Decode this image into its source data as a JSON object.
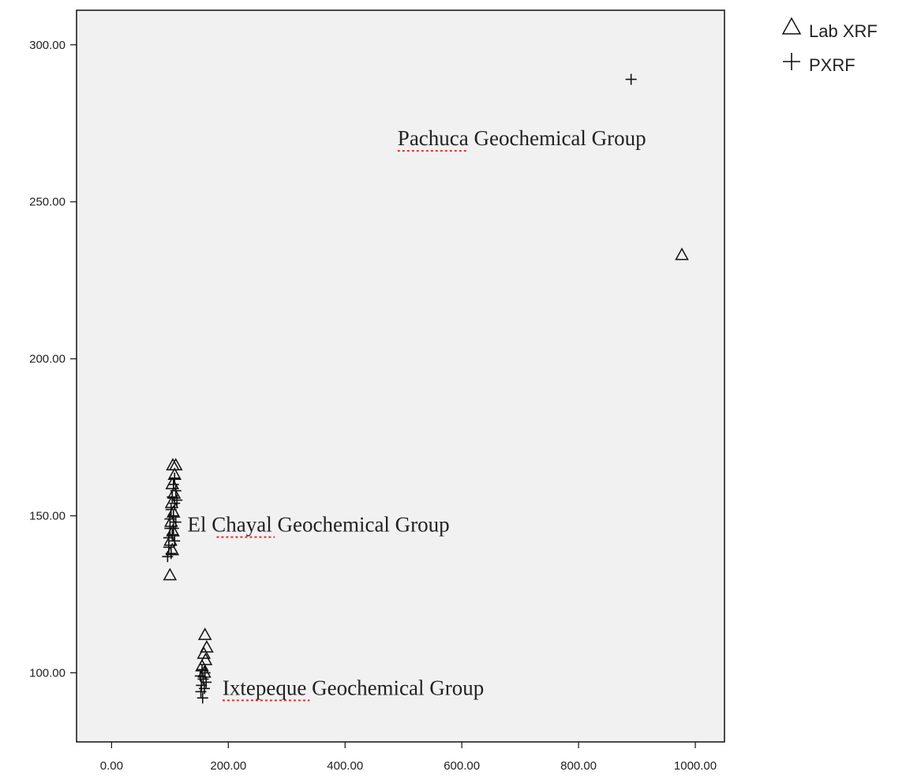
{
  "chart_data": {
    "type": "scatter",
    "xlim": [
      -60,
      1050
    ],
    "ylim": [
      78,
      311
    ],
    "x_ticks": [
      "0.00",
      "200.00",
      "400.00",
      "600.00",
      "800.00",
      "1000.00"
    ],
    "y_ticks": [
      "100.00",
      "150.00",
      "200.00",
      "250.00",
      "300.00"
    ],
    "background": "#f1f1f1",
    "grid": false,
    "legend_position": "top-right, outside plot",
    "series": [
      {
        "name": "Lab XRF",
        "marker": "triangle",
        "points": [
          [
            105,
            166
          ],
          [
            110,
            166
          ],
          [
            108,
            163
          ],
          [
            104,
            160
          ],
          [
            107,
            157
          ],
          [
            103,
            154
          ],
          [
            106,
            151
          ],
          [
            102,
            148
          ],
          [
            105,
            145
          ],
          [
            101,
            142
          ],
          [
            104,
            139
          ],
          [
            100,
            131
          ],
          [
            160,
            112
          ],
          [
            163,
            108
          ],
          [
            158,
            106
          ],
          [
            161,
            104
          ],
          [
            155,
            102
          ],
          [
            159,
            100
          ],
          [
            977,
            233
          ]
        ]
      },
      {
        "name": "PXRF",
        "marker": "plus",
        "points": [
          [
            108,
            162
          ],
          [
            106,
            160
          ],
          [
            110,
            158
          ],
          [
            104,
            156
          ],
          [
            108,
            154
          ],
          [
            102,
            152
          ],
          [
            106,
            150
          ],
          [
            110,
            148
          ],
          [
            100,
            146
          ],
          [
            104,
            144
          ],
          [
            108,
            142
          ],
          [
            98,
            140
          ],
          [
            102,
            138
          ],
          [
            96,
            137
          ],
          [
            106,
            146
          ],
          [
            100,
            149
          ],
          [
            112,
            155
          ],
          [
            98,
            143
          ],
          [
            155,
            101
          ],
          [
            160,
            100
          ],
          [
            152,
            99
          ],
          [
            157,
            98
          ],
          [
            162,
            97
          ],
          [
            154,
            96
          ],
          [
            159,
            95
          ],
          [
            153,
            94
          ],
          [
            156,
            92
          ],
          [
            890,
            289
          ]
        ]
      }
    ],
    "annotations": [
      {
        "text": "Pachuca Geochemical Group",
        "x": 490,
        "y": 268,
        "underlined_word": "Pachuca"
      },
      {
        "text": "El Chayal Geochemical Group",
        "x": 130,
        "y": 145,
        "underlined_word": "Chayal"
      },
      {
        "text": "Ixtepeque Geochemical Group",
        "x": 190,
        "y": 93,
        "underlined_word": "Ixtepeque"
      }
    ]
  }
}
